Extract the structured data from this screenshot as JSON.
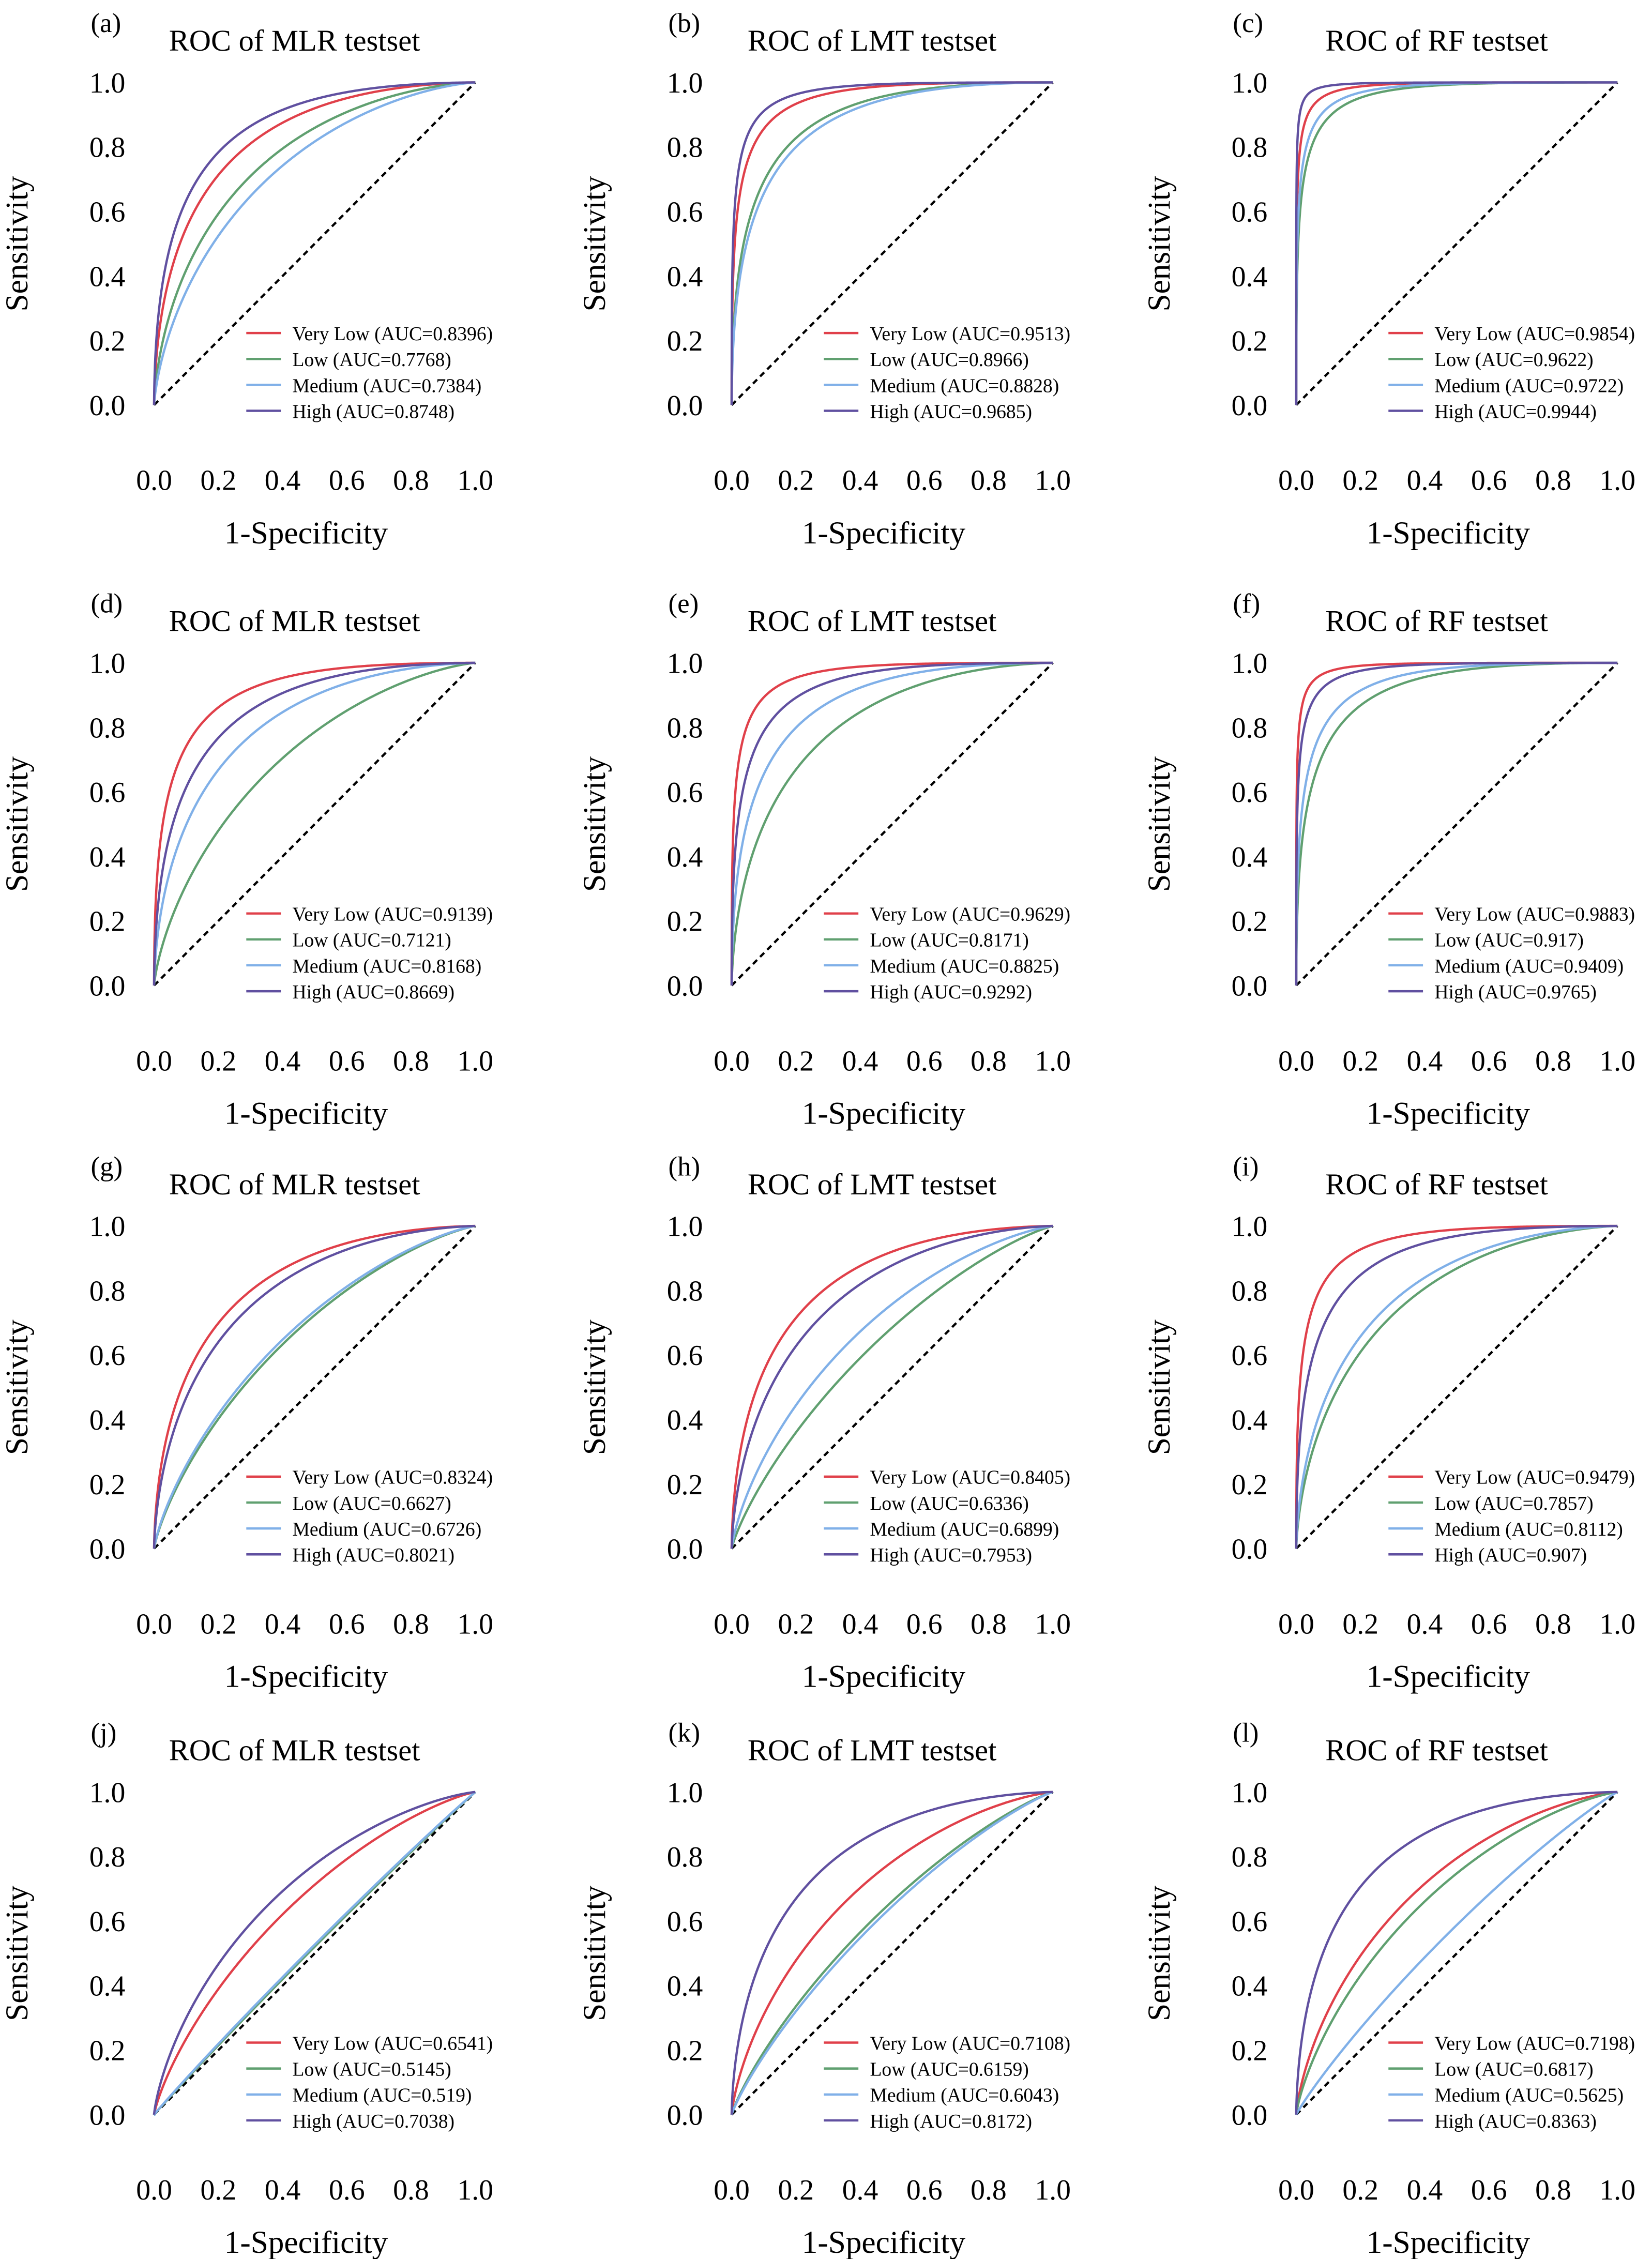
{
  "colors": {
    "Very Low": "#e0404a",
    "Low": "#60a070",
    "Medium": "#80b0e8",
    "High": "#6050a0",
    "reference": "#000000"
  },
  "chart_data": [
    {
      "type": "line",
      "panel_label": "(a)",
      "title": "ROC of MLR testset",
      "xlabel": "1-Specificity",
      "ylabel": "Sensitivity",
      "xlim": [
        0,
        1
      ],
      "ylim": [
        0,
        1
      ],
      "x_ticks": [
        "0.0",
        "0.2",
        "0.4",
        "0.6",
        "0.8",
        "1.0"
      ],
      "y_ticks": [
        "0.0",
        "0.2",
        "0.4",
        "0.6",
        "0.8",
        "1.0"
      ],
      "reference_line": "diagonal dashed",
      "legend_position": "bottom-right",
      "grid": false,
      "series": [
        {
          "name": "Very Low",
          "legend": "Very Low (AUC=0.8396)",
          "auc": 0.8396
        },
        {
          "name": "Low",
          "legend": "Low (AUC=0.7768)",
          "auc": 0.7768
        },
        {
          "name": "Medium",
          "legend": "Medium (AUC=0.7384)",
          "auc": 0.7384
        },
        {
          "name": "High",
          "legend": "High (AUC=0.8748)",
          "auc": 0.8748
        }
      ]
    },
    {
      "type": "line",
      "panel_label": "(b)",
      "title": "ROC of LMT testset",
      "xlabel": "1-Specificity",
      "ylabel": "Sensitivity",
      "xlim": [
        0,
        1
      ],
      "ylim": [
        0,
        1
      ],
      "x_ticks": [
        "0.0",
        "0.2",
        "0.4",
        "0.6",
        "0.8",
        "1.0"
      ],
      "y_ticks": [
        "0.0",
        "0.2",
        "0.4",
        "0.6",
        "0.8",
        "1.0"
      ],
      "reference_line": "diagonal dashed",
      "legend_position": "bottom-right",
      "grid": false,
      "series": [
        {
          "name": "Very Low",
          "legend": "Very Low (AUC=0.9513)",
          "auc": 0.9513
        },
        {
          "name": "Low",
          "legend": "Low (AUC=0.8966)",
          "auc": 0.8966
        },
        {
          "name": "Medium",
          "legend": "Medium (AUC=0.8828)",
          "auc": 0.8828
        },
        {
          "name": "High",
          "legend": "High (AUC=0.9685)",
          "auc": 0.9685
        }
      ]
    },
    {
      "type": "line",
      "panel_label": "(c)",
      "title": "ROC of RF testset",
      "xlabel": "1-Specificity",
      "ylabel": "Sensitivity",
      "xlim": [
        0,
        1
      ],
      "ylim": [
        0,
        1
      ],
      "x_ticks": [
        "0.0",
        "0.2",
        "0.4",
        "0.6",
        "0.8",
        "1.0"
      ],
      "y_ticks": [
        "0.0",
        "0.2",
        "0.4",
        "0.6",
        "0.8",
        "1.0"
      ],
      "reference_line": "diagonal dashed",
      "legend_position": "bottom-right",
      "grid": false,
      "series": [
        {
          "name": "Very Low",
          "legend": "Very Low (AUC=0.9854)",
          "auc": 0.9854
        },
        {
          "name": "Low",
          "legend": "Low (AUC=0.9622)",
          "auc": 0.9622
        },
        {
          "name": "Medium",
          "legend": "Medium (AUC=0.9722)",
          "auc": 0.9722
        },
        {
          "name": "High",
          "legend": "High (AUC=0.9944)",
          "auc": 0.9944
        }
      ]
    },
    {
      "type": "line",
      "panel_label": "(d)",
      "title": "ROC of MLR testset",
      "xlabel": "1-Specificity",
      "ylabel": "Sensitivity",
      "xlim": [
        0,
        1
      ],
      "ylim": [
        0,
        1
      ],
      "x_ticks": [
        "0.0",
        "0.2",
        "0.4",
        "0.6",
        "0.8",
        "1.0"
      ],
      "y_ticks": [
        "0.0",
        "0.2",
        "0.4",
        "0.6",
        "0.8",
        "1.0"
      ],
      "reference_line": "diagonal dashed",
      "legend_position": "bottom-right",
      "grid": false,
      "series": [
        {
          "name": "Very Low",
          "legend": "Very Low (AUC=0.9139)",
          "auc": 0.9139
        },
        {
          "name": "Low",
          "legend": "Low (AUC=0.7121)",
          "auc": 0.7121
        },
        {
          "name": "Medium",
          "legend": "Medium (AUC=0.8168)",
          "auc": 0.8168
        },
        {
          "name": "High",
          "legend": "High (AUC=0.8669)",
          "auc": 0.8669
        }
      ]
    },
    {
      "type": "line",
      "panel_label": "(e)",
      "title": "ROC of LMT testset",
      "xlabel": "1-Specificity",
      "ylabel": "Sensitivity",
      "xlim": [
        0,
        1
      ],
      "ylim": [
        0,
        1
      ],
      "x_ticks": [
        "0.0",
        "0.2",
        "0.4",
        "0.6",
        "0.8",
        "1.0"
      ],
      "y_ticks": [
        "0.0",
        "0.2",
        "0.4",
        "0.6",
        "0.8",
        "1.0"
      ],
      "reference_line": "diagonal dashed",
      "legend_position": "bottom-right",
      "grid": false,
      "series": [
        {
          "name": "Very Low",
          "legend": "Very Low (AUC=0.9629)",
          "auc": 0.9629
        },
        {
          "name": "Low",
          "legend": "Low (AUC=0.8171)",
          "auc": 0.8171
        },
        {
          "name": "Medium",
          "legend": "Medium (AUC=0.8825)",
          "auc": 0.8825
        },
        {
          "name": "High",
          "legend": "High (AUC=0.9292)",
          "auc": 0.9292
        }
      ]
    },
    {
      "type": "line",
      "panel_label": "(f)",
      "title": "ROC of RF testset",
      "xlabel": "1-Specificity",
      "ylabel": "Sensitivity",
      "xlim": [
        0,
        1
      ],
      "ylim": [
        0,
        1
      ],
      "x_ticks": [
        "0.0",
        "0.2",
        "0.4",
        "0.6",
        "0.8",
        "1.0"
      ],
      "y_ticks": [
        "0.0",
        "0.2",
        "0.4",
        "0.6",
        "0.8",
        "1.0"
      ],
      "reference_line": "diagonal dashed",
      "legend_position": "bottom-right",
      "grid": false,
      "series": [
        {
          "name": "Very Low",
          "legend": "Very Low (AUC=0.9883)",
          "auc": 0.9883
        },
        {
          "name": "Low",
          "legend": "Low (AUC=0.917)",
          "auc": 0.917
        },
        {
          "name": "Medium",
          "legend": "Medium (AUC=0.9409)",
          "auc": 0.9409
        },
        {
          "name": "High",
          "legend": "High (AUC=0.9765)",
          "auc": 0.9765
        }
      ]
    },
    {
      "type": "line",
      "panel_label": "(g)",
      "title": "ROC of MLR testset",
      "xlabel": "1-Specificity",
      "ylabel": "Sensitivity",
      "xlim": [
        0,
        1
      ],
      "ylim": [
        0,
        1
      ],
      "x_ticks": [
        "0.0",
        "0.2",
        "0.4",
        "0.6",
        "0.8",
        "1.0"
      ],
      "y_ticks": [
        "0.0",
        "0.2",
        "0.4",
        "0.6",
        "0.8",
        "1.0"
      ],
      "reference_line": "diagonal dashed",
      "legend_position": "bottom-right",
      "grid": false,
      "series": [
        {
          "name": "Very Low",
          "legend": "Very Low (AUC=0.8324)",
          "auc": 0.8324
        },
        {
          "name": "Low",
          "legend": "Low (AUC=0.6627)",
          "auc": 0.6627
        },
        {
          "name": "Medium",
          "legend": "Medium (AUC=0.6726)",
          "auc": 0.6726
        },
        {
          "name": "High",
          "legend": "High (AUC=0.8021)",
          "auc": 0.8021
        }
      ]
    },
    {
      "type": "line",
      "panel_label": "(h)",
      "title": "ROC of LMT testset",
      "xlabel": "1-Specificity",
      "ylabel": "Sensitivity",
      "xlim": [
        0,
        1
      ],
      "ylim": [
        0,
        1
      ],
      "x_ticks": [
        "0.0",
        "0.2",
        "0.4",
        "0.6",
        "0.8",
        "1.0"
      ],
      "y_ticks": [
        "0.0",
        "0.2",
        "0.4",
        "0.6",
        "0.8",
        "1.0"
      ],
      "reference_line": "diagonal dashed",
      "legend_position": "bottom-right",
      "grid": false,
      "series": [
        {
          "name": "Very Low",
          "legend": "Very Low (AUC=0.8405)",
          "auc": 0.8405
        },
        {
          "name": "Low",
          "legend": "Low (AUC=0.6336)",
          "auc": 0.6336
        },
        {
          "name": "Medium",
          "legend": "Medium (AUC=0.6899)",
          "auc": 0.6899
        },
        {
          "name": "High",
          "legend": "High (AUC=0.7953)",
          "auc": 0.7953
        }
      ]
    },
    {
      "type": "line",
      "panel_label": "(i)",
      "title": "ROC of RF testset",
      "xlabel": "1-Specificity",
      "ylabel": "Sensitivity",
      "xlim": [
        0,
        1
      ],
      "ylim": [
        0,
        1
      ],
      "x_ticks": [
        "0.0",
        "0.2",
        "0.4",
        "0.6",
        "0.8",
        "1.0"
      ],
      "y_ticks": [
        "0.0",
        "0.2",
        "0.4",
        "0.6",
        "0.8",
        "1.0"
      ],
      "reference_line": "diagonal dashed",
      "legend_position": "bottom-right",
      "grid": false,
      "series": [
        {
          "name": "Very Low",
          "legend": "Very Low (AUC=0.9479)",
          "auc": 0.9479
        },
        {
          "name": "Low",
          "legend": "Low (AUC=0.7857)",
          "auc": 0.7857
        },
        {
          "name": "Medium",
          "legend": "Medium (AUC=0.8112)",
          "auc": 0.8112
        },
        {
          "name": "High",
          "legend": "High (AUC=0.907)",
          "auc": 0.907
        }
      ]
    },
    {
      "type": "line",
      "panel_label": "(j)",
      "title": "ROC of MLR testset",
      "xlabel": "1-Specificity",
      "ylabel": "Sensitivity",
      "xlim": [
        0,
        1
      ],
      "ylim": [
        0,
        1
      ],
      "x_ticks": [
        "0.0",
        "0.2",
        "0.4",
        "0.6",
        "0.8",
        "1.0"
      ],
      "y_ticks": [
        "0.0",
        "0.2",
        "0.4",
        "0.6",
        "0.8",
        "1.0"
      ],
      "reference_line": "diagonal dashed",
      "legend_position": "bottom-right",
      "grid": false,
      "series": [
        {
          "name": "Very Low",
          "legend": "Very Low (AUC=0.6541)",
          "auc": 0.6541
        },
        {
          "name": "Low",
          "legend": "Low (AUC=0.5145)",
          "auc": 0.5145
        },
        {
          "name": "Medium",
          "legend": "Medium (AUC=0.519)",
          "auc": 0.519
        },
        {
          "name": "High",
          "legend": "High (AUC=0.7038)",
          "auc": 0.7038
        }
      ]
    },
    {
      "type": "line",
      "panel_label": "(k)",
      "title": "ROC of LMT testset",
      "xlabel": "1-Specificity",
      "ylabel": "Sensitivity",
      "xlim": [
        0,
        1
      ],
      "ylim": [
        0,
        1
      ],
      "x_ticks": [
        "0.0",
        "0.2",
        "0.4",
        "0.6",
        "0.8",
        "1.0"
      ],
      "y_ticks": [
        "0.0",
        "0.2",
        "0.4",
        "0.6",
        "0.8",
        "1.0"
      ],
      "reference_line": "diagonal dashed",
      "legend_position": "bottom-right",
      "grid": false,
      "series": [
        {
          "name": "Very Low",
          "legend": "Very Low (AUC=0.7108)",
          "auc": 0.7108
        },
        {
          "name": "Low",
          "legend": "Low (AUC=0.6159)",
          "auc": 0.6159
        },
        {
          "name": "Medium",
          "legend": "Medium (AUC=0.6043)",
          "auc": 0.6043
        },
        {
          "name": "High",
          "legend": "High (AUC=0.8172)",
          "auc": 0.8172
        }
      ]
    },
    {
      "type": "line",
      "panel_label": "(l)",
      "title": "ROC of RF testset",
      "xlabel": "1-Specificity",
      "ylabel": "Sensitivity",
      "xlim": [
        0,
        1
      ],
      "ylim": [
        0,
        1
      ],
      "x_ticks": [
        "0.0",
        "0.2",
        "0.4",
        "0.6",
        "0.8",
        "1.0"
      ],
      "y_ticks": [
        "0.0",
        "0.2",
        "0.4",
        "0.6",
        "0.8",
        "1.0"
      ],
      "reference_line": "diagonal dashed",
      "legend_position": "bottom-right",
      "grid": false,
      "series": [
        {
          "name": "Very Low",
          "legend": "Very Low (AUC=0.7198)",
          "auc": 0.7198
        },
        {
          "name": "Low",
          "legend": "Low (AUC=0.6817)",
          "auc": 0.6817
        },
        {
          "name": "Medium",
          "legend": "Medium (AUC=0.5625)",
          "auc": 0.5625
        },
        {
          "name": "High",
          "legend": "High (AUC=0.8363)",
          "auc": 0.8363
        }
      ]
    }
  ]
}
